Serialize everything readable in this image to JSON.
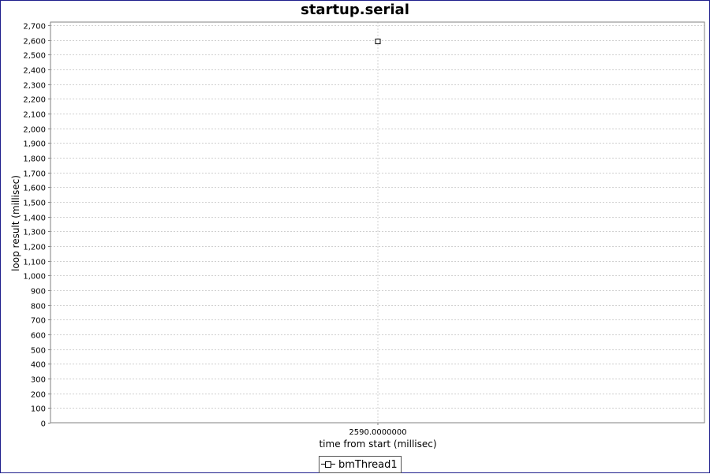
{
  "chart_data": {
    "type": "scatter",
    "title": "startup.serial",
    "xlabel": "time from start (millisec)",
    "ylabel": "loop result (millisec)",
    "ylim": [
      0,
      2700
    ],
    "y_ticks": [
      "0",
      "100",
      "200",
      "300",
      "400",
      "500",
      "600",
      "700",
      "800",
      "900",
      "1,000",
      "1,100",
      "1,200",
      "1,300",
      "1,400",
      "1,500",
      "1,600",
      "1,700",
      "1,800",
      "1,900",
      "2,000",
      "2,100",
      "2,200",
      "2,300",
      "2,400",
      "2,500",
      "2,600",
      "2,700"
    ],
    "x_ticks": [
      "2590.0000000"
    ],
    "grid": true,
    "legend_placement": "bottom-center",
    "series": [
      {
        "name": "bmThread1",
        "marker": "square",
        "x": [
          2590.0
        ],
        "y": [
          2590
        ]
      }
    ],
    "colors": {
      "border": "#1e1e8c",
      "grid": "#d0d0d0",
      "marker": "#000000",
      "axis": "#808080"
    }
  }
}
